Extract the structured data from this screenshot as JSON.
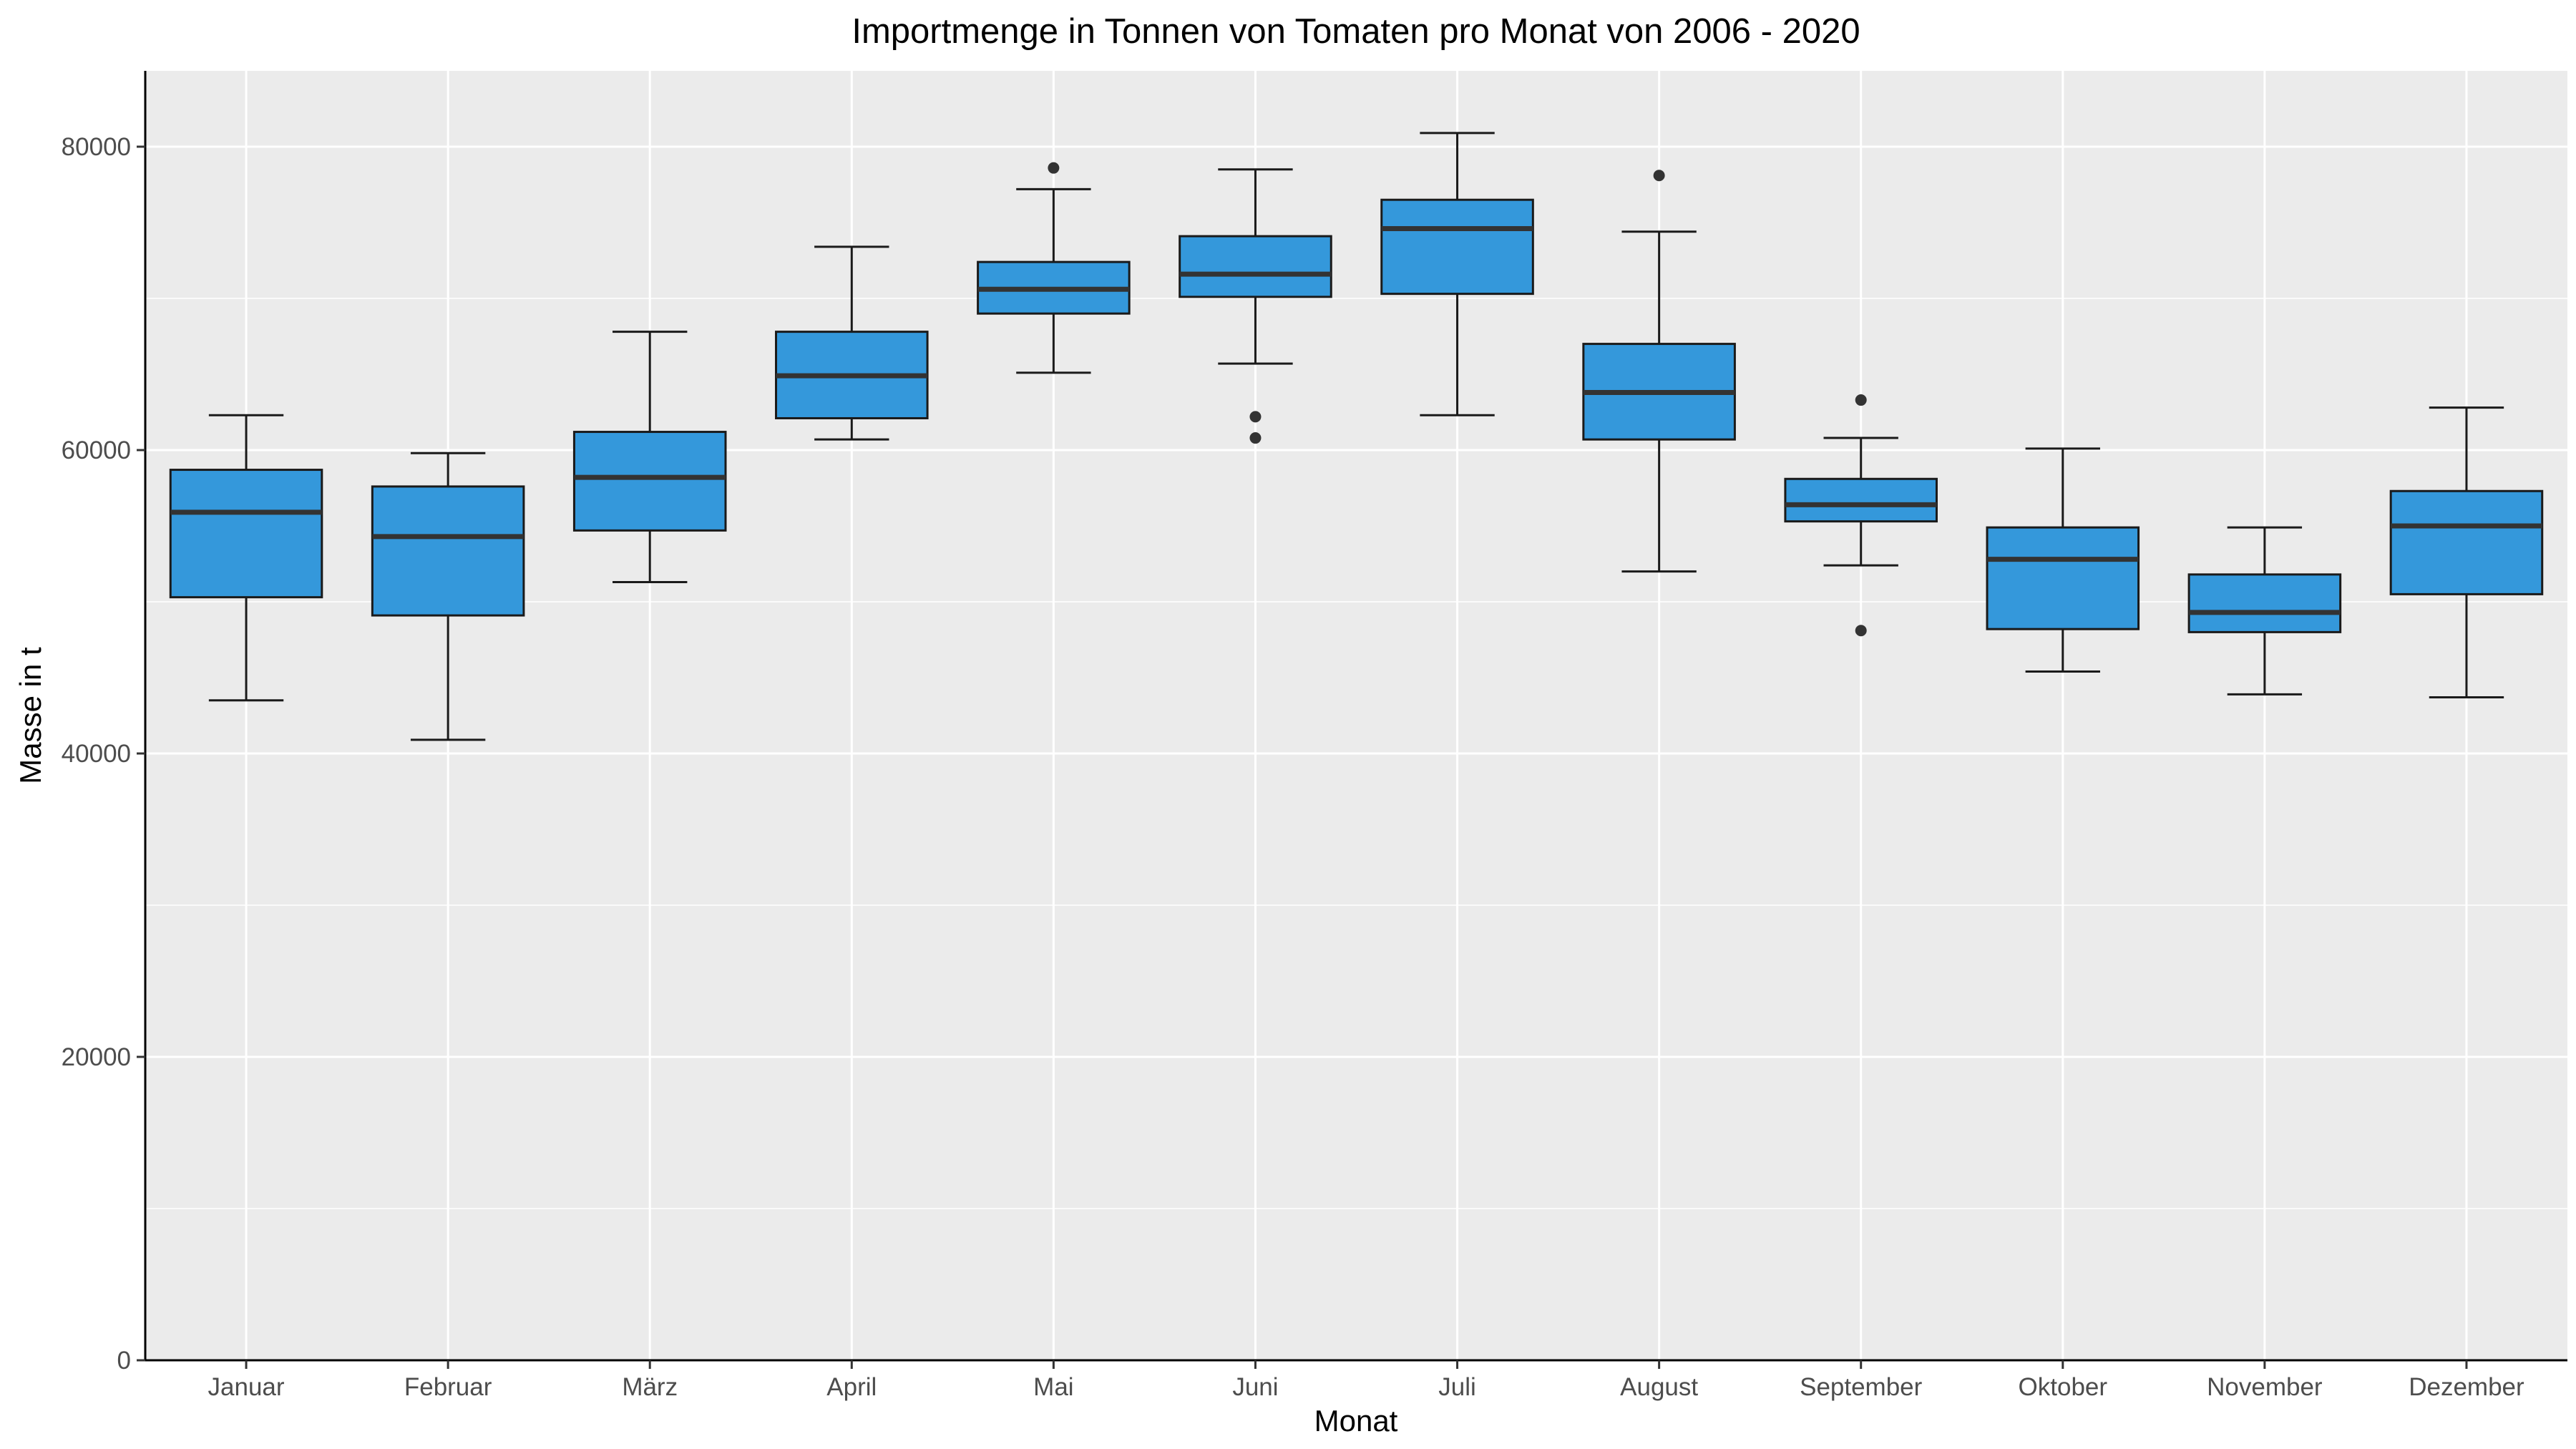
{
  "chart_data": {
    "type": "boxplot",
    "title": "Importmenge in Tonnen von Tomaten pro Monat von 2006 - 2020",
    "xlabel": "Monat",
    "ylabel": "Masse in t",
    "ylim": [
      0,
      85000
    ],
    "yticks": [
      0,
      20000,
      40000,
      60000,
      80000
    ],
    "grid": true,
    "colors": {
      "panel_background": "#ebebeb",
      "grid": "#ffffff",
      "box_fill": "#3498db",
      "box_stroke": "#1a1a1a",
      "outlier": "#333333"
    },
    "categories": [
      "Januar",
      "Februar",
      "März",
      "April",
      "Mai",
      "Juni",
      "Juli",
      "August",
      "September",
      "Oktober",
      "November",
      "Dezember"
    ],
    "boxes": [
      {
        "category": "Januar",
        "whisker_low": 43500,
        "q1": 50300,
        "median": 55900,
        "q3": 58700,
        "whisker_high": 62300,
        "outliers": []
      },
      {
        "category": "Februar",
        "whisker_low": 40900,
        "q1": 49100,
        "median": 54300,
        "q3": 57600,
        "whisker_high": 59800,
        "outliers": []
      },
      {
        "category": "März",
        "whisker_low": 51300,
        "q1": 54700,
        "median": 58200,
        "q3": 61200,
        "whisker_high": 67800,
        "outliers": []
      },
      {
        "category": "April",
        "whisker_low": 60700,
        "q1": 62100,
        "median": 64900,
        "q3": 67800,
        "whisker_high": 73400,
        "outliers": []
      },
      {
        "category": "Mai",
        "whisker_low": 65100,
        "q1": 69000,
        "median": 70600,
        "q3": 72400,
        "whisker_high": 77200,
        "outliers": [
          78600
        ]
      },
      {
        "category": "Juni",
        "whisker_low": 65700,
        "q1": 70100,
        "median": 71600,
        "q3": 74100,
        "whisker_high": 78500,
        "outliers": [
          62200,
          60800
        ]
      },
      {
        "category": "Juli",
        "whisker_low": 62300,
        "q1": 70300,
        "median": 74600,
        "q3": 76500,
        "whisker_high": 80900,
        "outliers": []
      },
      {
        "category": "August",
        "whisker_low": 52000,
        "q1": 60700,
        "median": 63800,
        "q3": 67000,
        "whisker_high": 74400,
        "outliers": [
          78100
        ]
      },
      {
        "category": "September",
        "whisker_low": 52400,
        "q1": 55300,
        "median": 56400,
        "q3": 58100,
        "whisker_high": 60800,
        "outliers": [
          63300,
          48100
        ]
      },
      {
        "category": "Oktober",
        "whisker_low": 45400,
        "q1": 48200,
        "median": 52800,
        "q3": 54900,
        "whisker_high": 60100,
        "outliers": []
      },
      {
        "category": "November",
        "whisker_low": 43900,
        "q1": 48000,
        "median": 49300,
        "q3": 51800,
        "whisker_high": 54900,
        "outliers": []
      },
      {
        "category": "Dezember",
        "whisker_low": 43700,
        "q1": 50500,
        "median": 55000,
        "q3": 57300,
        "whisker_high": 62800,
        "outliers": []
      }
    ]
  }
}
